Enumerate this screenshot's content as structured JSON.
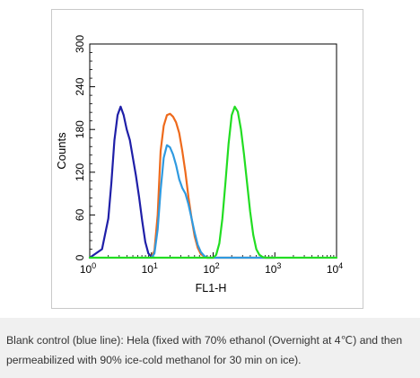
{
  "chart_data": {
    "type": "line",
    "title": "",
    "xlabel": "FL1-H",
    "ylabel": "Counts",
    "xscale": "log",
    "xlim": [
      1,
      10000
    ],
    "ylim": [
      0,
      300
    ],
    "x_ticks": [
      {
        "value": 1,
        "base": "10",
        "exp": "0"
      },
      {
        "value": 10,
        "base": "10",
        "exp": "1"
      },
      {
        "value": 100,
        "base": "10",
        "exp": "2"
      },
      {
        "value": 1000,
        "base": "10",
        "exp": "3"
      },
      {
        "value": 10000,
        "base": "10",
        "exp": "4"
      }
    ],
    "y_ticks": [
      {
        "value": 0,
        "label": "0"
      },
      {
        "value": 60,
        "label": "60"
      },
      {
        "value": 120,
        "label": "120"
      },
      {
        "value": 180,
        "label": "180"
      },
      {
        "value": 240,
        "label": "240"
      },
      {
        "value": 300,
        "label": "300"
      }
    ],
    "grid": false,
    "series": [
      {
        "name": "Blank control",
        "color": "#1f1fa8",
        "x": [
          1.0,
          1.58,
          2.0,
          2.24,
          2.51,
          2.82,
          3.16,
          3.55,
          3.98,
          4.47,
          5.01,
          5.62,
          6.31,
          7.08,
          7.94,
          8.91,
          10.0,
          11.2
        ],
        "y": [
          0,
          12,
          55,
          105,
          165,
          200,
          212,
          200,
          180,
          165,
          140,
          115,
          85,
          52,
          22,
          6,
          1,
          0
        ]
      },
      {
        "name": "",
        "color": "#ee6a1c",
        "x": [
          10.0,
          11.2,
          12.6,
          13.4,
          14.1,
          15.8,
          17.8,
          20.0,
          22.4,
          25.1,
          28.2,
          31.6,
          35.5,
          39.8,
          44.7,
          50.1,
          56.2,
          63.1,
          70.8,
          79.4,
          100.0,
          1000.0
        ],
        "y": [
          0,
          10,
          60,
          110,
          150,
          185,
          200,
          202,
          198,
          190,
          175,
          150,
          120,
          85,
          55,
          30,
          14,
          5,
          2,
          0,
          0,
          0
        ]
      },
      {
        "name": "",
        "color": "#2f9ae0",
        "x": [
          10.0,
          11.2,
          12.6,
          14.1,
          15.8,
          17.8,
          20.0,
          22.4,
          25.1,
          28.2,
          31.6,
          35.5,
          39.8,
          44.7,
          50.1,
          56.2,
          63.1,
          70.8,
          79.4,
          100.0,
          1000.0
        ],
        "y": [
          0,
          6,
          40,
          95,
          140,
          158,
          155,
          145,
          130,
          110,
          98,
          90,
          75,
          55,
          35,
          18,
          8,
          3,
          0,
          0,
          0
        ]
      },
      {
        "name": "",
        "color": "#22dd22",
        "x": [
          1.0,
          100.0,
          112.0,
          126.0,
          141.0,
          158.0,
          178.0,
          200.0,
          224.0,
          251.0,
          282.0,
          316.0,
          355.0,
          398.0,
          447.0,
          501.0,
          562.0,
          631.0,
          708.0,
          1000.0,
          10000.0
        ],
        "y": [
          0,
          0,
          4,
          20,
          55,
          105,
          160,
          200,
          212,
          205,
          180,
          145,
          105,
          65,
          32,
          12,
          4,
          1,
          0,
          0,
          0
        ]
      }
    ]
  },
  "caption": {
    "text": "Blank control (blue line): Hela (fixed with 70% ethanol (Overnight at 4℃) and then permeabilized with 90% ice-cold methanol for 30 min on ice)."
  }
}
